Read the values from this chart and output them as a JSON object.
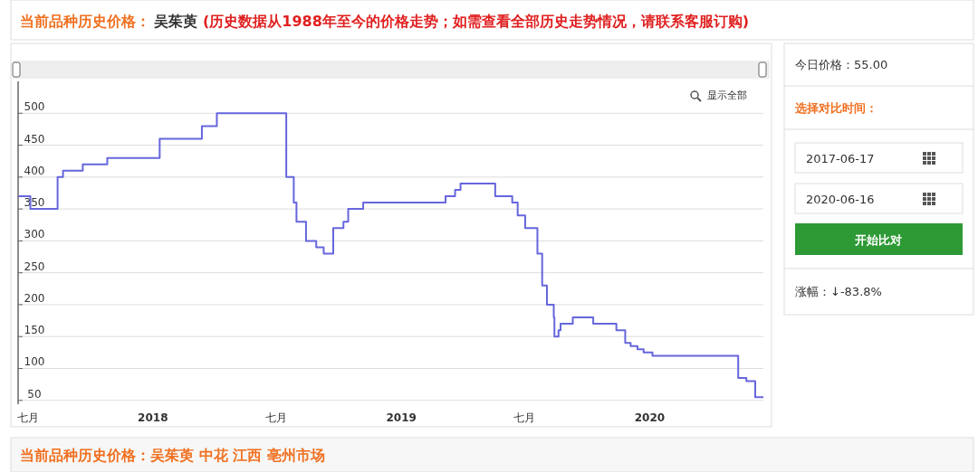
{
  "chart_data": {
    "type": "step",
    "title": "当前品种历史价格：",
    "subtitle": "吴茱萸",
    "x": [
      "2017-06-17",
      "2017-07-05",
      "2017-08-14",
      "2017-08-22",
      "2017-09-20",
      "2017-10-26",
      "2018-01-11",
      "2018-03-14",
      "2018-04-05",
      "2018-07-16",
      "2018-07-27",
      "2018-07-31",
      "2018-08-14",
      "2018-08-29",
      "2018-09-09",
      "2018-09-23",
      "2018-10-08",
      "2018-10-15",
      "2018-11-06",
      "2019-03-07",
      "2019-03-21",
      "2019-03-29",
      "2019-05-19",
      "2019-06-13",
      "2019-06-21",
      "2019-07-02",
      "2019-07-20",
      "2019-07-27",
      "2019-08-03",
      "2019-08-13",
      "2019-08-14",
      "2019-08-20",
      "2019-08-23",
      "2019-09-10",
      "2019-10-10",
      "2019-11-13",
      "2019-11-26",
      "2019-12-04",
      "2019-12-14",
      "2019-12-23",
      "2020-01-05",
      "2020-05-10",
      "2020-05-22",
      "2020-06-04",
      "2020-06-16"
    ],
    "values": [
      370,
      350,
      400,
      410,
      420,
      430,
      460,
      480,
      500,
      400,
      360,
      330,
      300,
      290,
      280,
      320,
      330,
      350,
      360,
      370,
      380,
      390,
      370,
      360,
      340,
      320,
      280,
      230,
      200,
      180,
      150,
      160,
      170,
      180,
      170,
      160,
      140,
      135,
      130,
      125,
      120,
      85,
      80,
      55,
      55
    ],
    "color": "#6666dd",
    "xlim": [
      "2017-06-17",
      "2020-06-16"
    ],
    "xticks": [
      {
        "value": "2017-07-01",
        "label": "七月"
      },
      {
        "value": "2018-01-01",
        "label": "2018"
      },
      {
        "value": "2018-07-01",
        "label": "七月"
      },
      {
        "value": "2019-01-01",
        "label": "2019"
      },
      {
        "value": "2019-07-01",
        "label": "七月"
      },
      {
        "value": "2020-01-01",
        "label": "2020"
      }
    ],
    "ylim": [
      44,
      550
    ],
    "yticks": [
      50,
      100,
      150,
      200,
      250,
      300,
      350,
      400,
      450,
      500
    ],
    "grid": "y",
    "annotations": [
      "(历史数据从1988年至今的价格走势；如需查看全部历史走势情况，请联系客服订购)",
      "显示全部",
      "今日价格：55.00",
      "选择对比时间：",
      "2017-06-17",
      "2020-06-16",
      "开始比对",
      "涨幅：↓-83.8%",
      "当前品种历史价格：吴茱萸 中花 江西 亳州市场"
    ]
  }
}
